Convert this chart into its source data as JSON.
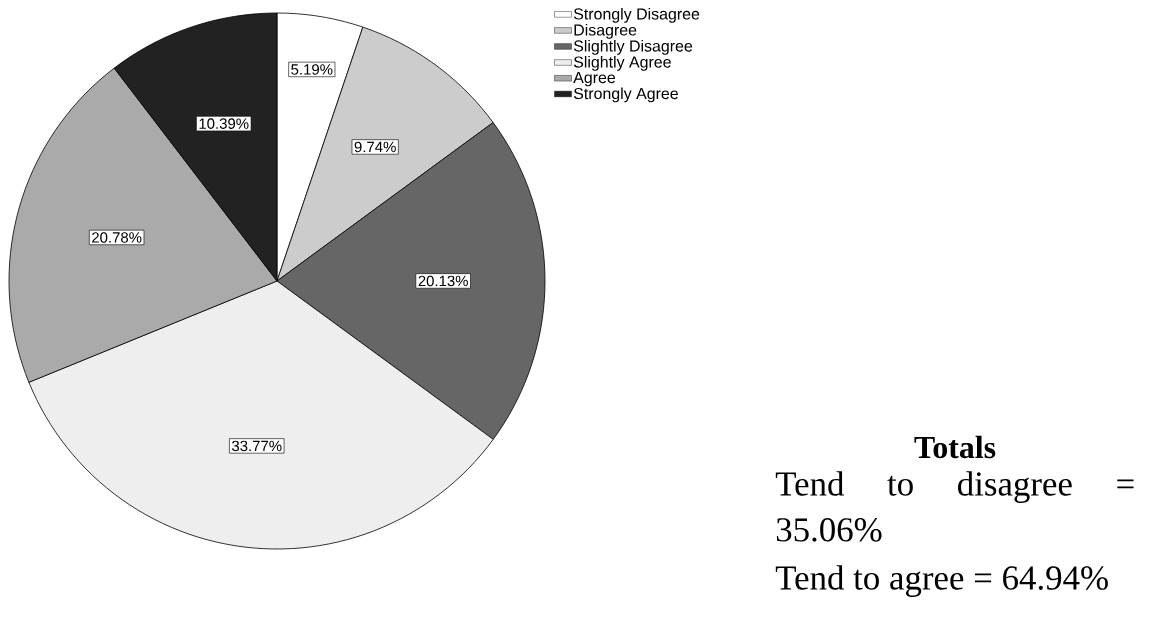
{
  "chart_data": {
    "type": "pie",
    "categories": [
      "Strongly Disagree",
      "Disagree",
      "Slightly Disagree",
      "Slightly Agree",
      "Agree",
      "Strongly Agree"
    ],
    "values": [
      5.19,
      9.74,
      20.13,
      33.77,
      20.78,
      10.39
    ],
    "value_labels": [
      "5.19%",
      "9.74%",
      "20.13%",
      "33.77%",
      "20.78%",
      "10.39%"
    ],
    "colors": [
      "#ffffff",
      "#cccccc",
      "#666666",
      "#eeeeee",
      "#aaaaaa",
      "#222222"
    ],
    "legend": "top right",
    "annotations": [
      "Totals",
      "Tend to disagree = 35.06%",
      "Tend to agree = 64.94%"
    ]
  }
}
